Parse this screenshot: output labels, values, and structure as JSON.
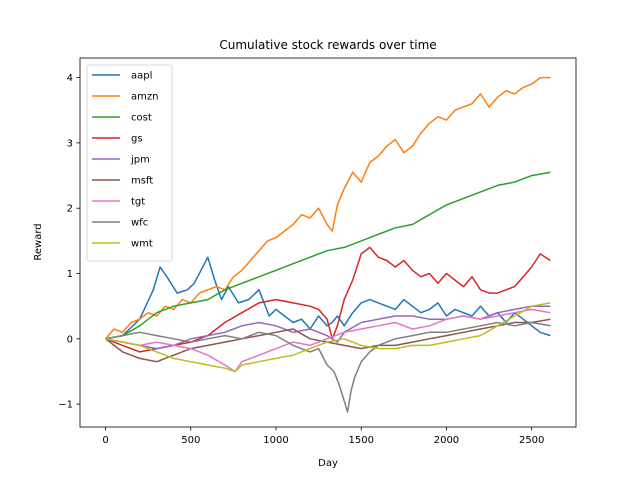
{
  "chart_data": {
    "type": "line",
    "title": "Cumulative stock rewards over time",
    "xlabel": "Day",
    "ylabel": "Reward",
    "xlim": [
      -150,
      2760
    ],
    "ylim": [
      -1.35,
      4.3
    ],
    "xticks": [
      0,
      500,
      1000,
      1500,
      2000,
      2500
    ],
    "yticks": [
      -1,
      0,
      1,
      2,
      3,
      4
    ],
    "grid": false,
    "legend_position": "top-left",
    "series": [
      {
        "name": "aapl",
        "color": "#1f77b4",
        "x": [
          0,
          100,
          200,
          280,
          320,
          360,
          420,
          480,
          520,
          560,
          600,
          640,
          680,
          720,
          780,
          840,
          900,
          960,
          1000,
          1050,
          1100,
          1150,
          1200,
          1250,
          1300,
          1330,
          1360,
          1400,
          1450,
          1500,
          1550,
          1600,
          1650,
          1700,
          1750,
          1800,
          1850,
          1900,
          1950,
          2000,
          2050,
          2100,
          2150,
          2200,
          2250,
          2300,
          2350,
          2400,
          2450,
          2500,
          2550,
          2610
        ],
        "y": [
          0,
          0.05,
          0.3,
          0.75,
          1.1,
          0.95,
          0.7,
          0.75,
          0.85,
          1.05,
          1.25,
          0.9,
          0.6,
          0.8,
          0.55,
          0.6,
          0.75,
          0.35,
          0.45,
          0.35,
          0.25,
          0.3,
          0.15,
          0.35,
          0.2,
          0.25,
          0.35,
          0.2,
          0.4,
          0.55,
          0.6,
          0.55,
          0.5,
          0.45,
          0.6,
          0.5,
          0.4,
          0.45,
          0.55,
          0.35,
          0.45,
          0.4,
          0.35,
          0.5,
          0.35,
          0.4,
          0.25,
          0.4,
          0.3,
          0.2,
          0.1,
          0.05
        ]
      },
      {
        "name": "amzn",
        "color": "#ff7f0e",
        "x": [
          0,
          50,
          100,
          150,
          200,
          250,
          300,
          350,
          400,
          450,
          500,
          550,
          600,
          650,
          700,
          750,
          800,
          850,
          900,
          950,
          1000,
          1050,
          1100,
          1150,
          1200,
          1250,
          1300,
          1330,
          1360,
          1400,
          1450,
          1500,
          1550,
          1600,
          1650,
          1700,
          1750,
          1800,
          1850,
          1900,
          1950,
          2000,
          2050,
          2100,
          2150,
          2200,
          2250,
          2300,
          2350,
          2400,
          2450,
          2500,
          2550,
          2610
        ],
        "y": [
          0,
          0.15,
          0.1,
          0.25,
          0.3,
          0.4,
          0.35,
          0.5,
          0.45,
          0.6,
          0.55,
          0.7,
          0.75,
          0.8,
          0.75,
          0.95,
          1.05,
          1.2,
          1.35,
          1.5,
          1.55,
          1.65,
          1.75,
          1.9,
          1.85,
          2.0,
          1.75,
          1.65,
          2.05,
          2.3,
          2.55,
          2.4,
          2.7,
          2.8,
          2.95,
          3.05,
          2.85,
          2.95,
          3.15,
          3.3,
          3.4,
          3.35,
          3.5,
          3.55,
          3.6,
          3.75,
          3.55,
          3.7,
          3.8,
          3.75,
          3.85,
          3.9,
          4.0,
          4.0
        ]
      },
      {
        "name": "cost",
        "color": "#2ca02c",
        "x": [
          0,
          100,
          200,
          300,
          400,
          500,
          600,
          700,
          800,
          900,
          1000,
          1100,
          1200,
          1300,
          1400,
          1500,
          1600,
          1700,
          1800,
          1900,
          2000,
          2100,
          2200,
          2300,
          2400,
          2500,
          2610
        ],
        "y": [
          0,
          0.05,
          0.2,
          0.4,
          0.5,
          0.55,
          0.6,
          0.75,
          0.85,
          0.95,
          1.05,
          1.15,
          1.25,
          1.35,
          1.4,
          1.5,
          1.6,
          1.7,
          1.75,
          1.9,
          2.05,
          2.15,
          2.25,
          2.35,
          2.4,
          2.5,
          2.55
        ]
      },
      {
        "name": "gs",
        "color": "#d62728",
        "x": [
          0,
          100,
          200,
          300,
          400,
          500,
          600,
          700,
          800,
          900,
          1000,
          1100,
          1200,
          1250,
          1300,
          1330,
          1360,
          1400,
          1450,
          1500,
          1550,
          1600,
          1650,
          1700,
          1750,
          1800,
          1850,
          1900,
          1950,
          2000,
          2050,
          2100,
          2150,
          2200,
          2250,
          2300,
          2350,
          2400,
          2450,
          2500,
          2550,
          2610
        ],
        "y": [
          0,
          -0.1,
          -0.2,
          -0.15,
          -0.1,
          -0.05,
          0.05,
          0.25,
          0.4,
          0.55,
          0.6,
          0.55,
          0.5,
          0.45,
          0.3,
          0.0,
          0.2,
          0.6,
          0.9,
          1.3,
          1.4,
          1.25,
          1.2,
          1.1,
          1.2,
          1.05,
          0.95,
          1.0,
          0.85,
          1.0,
          0.9,
          0.8,
          0.95,
          0.75,
          0.7,
          0.7,
          0.75,
          0.8,
          0.95,
          1.1,
          1.3,
          1.2
        ]
      },
      {
        "name": "jpm",
        "color": "#9467bd",
        "x": [
          0,
          100,
          200,
          300,
          400,
          500,
          600,
          700,
          800,
          900,
          1000,
          1100,
          1200,
          1300,
          1360,
          1400,
          1500,
          1600,
          1700,
          1800,
          1900,
          2000,
          2100,
          2200,
          2300,
          2400,
          2500,
          2610
        ],
        "y": [
          0,
          -0.05,
          -0.1,
          -0.15,
          -0.1,
          0.0,
          0.05,
          0.1,
          0.2,
          0.25,
          0.2,
          0.1,
          0.15,
          0.05,
          -0.05,
          0.1,
          0.25,
          0.3,
          0.35,
          0.35,
          0.3,
          0.3,
          0.35,
          0.3,
          0.4,
          0.45,
          0.5,
          0.5
        ]
      },
      {
        "name": "msft",
        "color": "#8c564b",
        "x": [
          0,
          100,
          200,
          300,
          400,
          500,
          600,
          700,
          800,
          900,
          1000,
          1100,
          1200,
          1300,
          1400,
          1500,
          1600,
          1700,
          1800,
          1900,
          2000,
          2100,
          2200,
          2300,
          2400,
          2500,
          2610
        ],
        "y": [
          0,
          -0.2,
          -0.3,
          -0.35,
          -0.25,
          -0.15,
          -0.1,
          -0.05,
          0.0,
          0.05,
          0.1,
          0.15,
          0.0,
          -0.05,
          -0.1,
          -0.15,
          -0.1,
          -0.1,
          -0.05,
          0.0,
          0.05,
          0.1,
          0.15,
          0.2,
          0.25,
          0.25,
          0.3
        ]
      },
      {
        "name": "tgt",
        "color": "#e377c2",
        "x": [
          0,
          100,
          200,
          300,
          400,
          500,
          600,
          700,
          760,
          800,
          900,
          1000,
          1100,
          1200,
          1300,
          1400,
          1500,
          1600,
          1700,
          1800,
          1900,
          2000,
          2100,
          2200,
          2300,
          2400,
          2500,
          2610
        ],
        "y": [
          0,
          -0.05,
          -0.1,
          -0.05,
          -0.1,
          -0.15,
          -0.25,
          -0.4,
          -0.5,
          -0.35,
          -0.25,
          -0.15,
          -0.05,
          -0.1,
          0.0,
          0.1,
          0.15,
          0.2,
          0.25,
          0.15,
          0.2,
          0.3,
          0.35,
          0.3,
          0.35,
          0.4,
          0.45,
          0.4
        ]
      },
      {
        "name": "wfc",
        "color": "#7f7f7f",
        "x": [
          0,
          100,
          200,
          300,
          400,
          500,
          600,
          700,
          800,
          900,
          1000,
          1100,
          1200,
          1250,
          1300,
          1340,
          1370,
          1400,
          1420,
          1440,
          1460,
          1500,
          1550,
          1600,
          1700,
          1800,
          1900,
          2000,
          2100,
          2200,
          2300,
          2400,
          2500,
          2610
        ],
        "y": [
          0,
          0.05,
          0.1,
          0.05,
          0.0,
          -0.05,
          0.0,
          0.05,
          0.0,
          0.1,
          0.05,
          -0.1,
          -0.2,
          -0.15,
          -0.4,
          -0.5,
          -0.7,
          -0.95,
          -1.12,
          -0.8,
          -0.6,
          -0.35,
          -0.2,
          -0.1,
          0.0,
          0.05,
          0.1,
          0.1,
          0.15,
          0.2,
          0.25,
          0.2,
          0.25,
          0.2
        ]
      },
      {
        "name": "wmt",
        "color": "#bcbd22",
        "x": [
          0,
          100,
          200,
          300,
          400,
          500,
          600,
          700,
          760,
          800,
          900,
          1000,
          1100,
          1200,
          1300,
          1400,
          1500,
          1600,
          1700,
          1800,
          1900,
          2000,
          2100,
          2200,
          2300,
          2400,
          2500,
          2610
        ],
        "y": [
          0,
          -0.05,
          -0.1,
          -0.2,
          -0.3,
          -0.35,
          -0.4,
          -0.45,
          -0.5,
          -0.4,
          -0.35,
          -0.3,
          -0.25,
          -0.15,
          -0.05,
          0.0,
          -0.1,
          -0.15,
          -0.15,
          -0.1,
          -0.1,
          -0.05,
          0.0,
          0.05,
          0.2,
          0.35,
          0.5,
          0.55
        ]
      }
    ]
  }
}
